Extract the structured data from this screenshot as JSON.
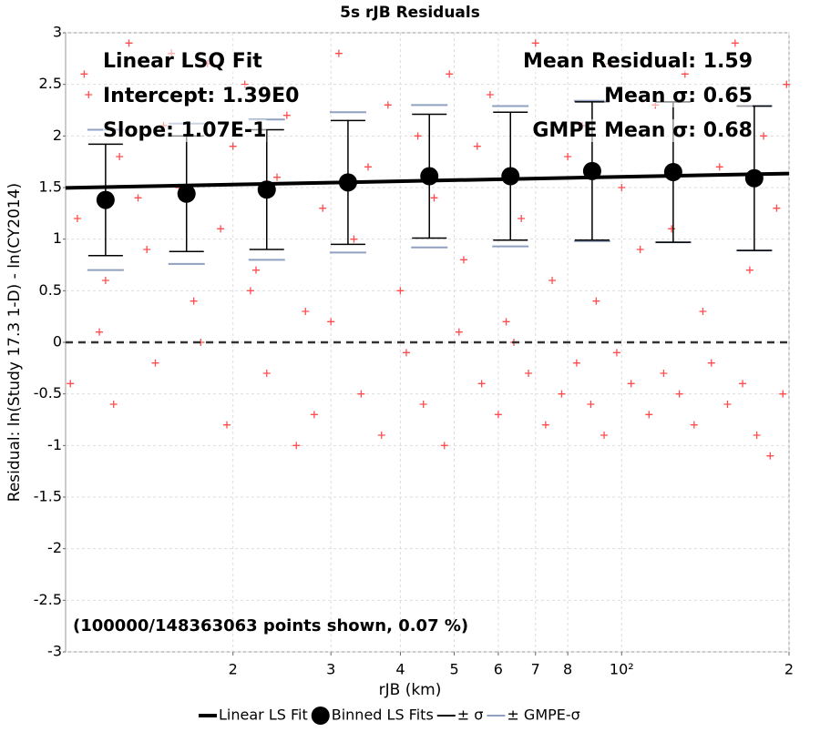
{
  "chart_data": {
    "type": "scatter",
    "title": "5s rJB Residuals",
    "xlabel": "rJB (km)",
    "ylabel": "Residual: ln(Study 17.3 1-D) - ln(CY2014)",
    "xscale": "log",
    "xlim": [
      10,
      200
    ],
    "ylim": [
      -3,
      3
    ],
    "xticks": [
      {
        "value": 20,
        "label": "2"
      },
      {
        "value": 30,
        "label": "3"
      },
      {
        "value": 40,
        "label": "4"
      },
      {
        "value": 50,
        "label": "5"
      },
      {
        "value": 60,
        "label": "6"
      },
      {
        "value": 70,
        "label": "7"
      },
      {
        "value": 80,
        "label": "8"
      },
      {
        "value": 100,
        "label": "10²"
      },
      {
        "value": 200,
        "label": "2"
      }
    ],
    "yticks": [
      -3,
      -2.5,
      -2,
      -1.5,
      -1,
      -0.5,
      0,
      0.5,
      1,
      1.5,
      2,
      2.5,
      3
    ],
    "grid": true,
    "hline": 0,
    "annotations": [
      "Linear LSQ Fit",
      "Intercept: 1.39E0",
      "Slope: 1.07E-1",
      "Mean Residual: 1.59",
      "Mean σ: 0.65",
      "GMPE Mean σ: 0.68",
      "(100000/148363063 points shown, 0.07 %)"
    ],
    "points": {
      "color": "#ff4d4d",
      "x": [
        10.5,
        11,
        11.8,
        12.5,
        13,
        14,
        15,
        16,
        17,
        18,
        19,
        20,
        21,
        22,
        24,
        25,
        27,
        29,
        31,
        33,
        35,
        38,
        40,
        43,
        46,
        49,
        52,
        55,
        58,
        62,
        66,
        70,
        75,
        80,
        85,
        90,
        95,
        100,
        108,
        115,
        123,
        130,
        140,
        150,
        160,
        170,
        180,
        190,
        198,
        10.2,
        10.8,
        11.5,
        12.2,
        13.5,
        14.5,
        15.5,
        17.5,
        19.5,
        21.5,
        23,
        26,
        28,
        30,
        34,
        37,
        41,
        44,
        48,
        51,
        56,
        60,
        64,
        68,
        73,
        78,
        83,
        88,
        93,
        98,
        104,
        112,
        119,
        127,
        135,
        145,
        155,
        165,
        175,
        185,
        195
      ],
      "y": [
        1.2,
        2.4,
        0.6,
        1.8,
        2.9,
        0.9,
        2.1,
        1.5,
        0.4,
        2.7,
        1.1,
        1.9,
        2.5,
        0.7,
        1.6,
        2.2,
        0.3,
        1.3,
        2.8,
        1.0,
        1.7,
        2.3,
        0.5,
        2.0,
        1.4,
        2.6,
        0.8,
        1.9,
        2.4,
        0.2,
        1.2,
        2.9,
        0.6,
        1.8,
        2.1,
        0.4,
        2.7,
        1.5,
        0.9,
        2.3,
        1.1,
        2.6,
        0.3,
        1.7,
        2.9,
        0.7,
        2.0,
        1.3,
        2.5,
        -0.4,
        2.6,
        0.1,
        -0.6,
        1.4,
        -0.2,
        2.8,
        0.0,
        -0.8,
        0.5,
        -0.3,
        -1.0,
        -0.7,
        0.2,
        -0.5,
        -0.9,
        -0.1,
        -0.6,
        -1.0,
        0.1,
        -0.4,
        -0.7,
        0.0,
        -0.3,
        -0.8,
        -0.5,
        -0.2,
        -0.6,
        -0.9,
        -0.1,
        -0.4,
        -0.7,
        -0.3,
        -0.5,
        -0.8,
        -0.2,
        -0.6,
        -0.4,
        -0.9,
        -1.1,
        -0.5
      ]
    },
    "series": [
      {
        "name": "Linear LS Fit",
        "color": "#000000",
        "x": [
          10,
          200
        ],
        "values": [
          1.497,
          1.636
        ]
      },
      {
        "name": "Binned LS Fits",
        "color": "#000000",
        "x": [
          11.8,
          16.5,
          23.0,
          32.2,
          45.1,
          63.1,
          88.5,
          123.8,
          173.2
        ],
        "values": [
          1.38,
          1.44,
          1.48,
          1.55,
          1.61,
          1.61,
          1.66,
          1.65,
          1.59
        ]
      },
      {
        "name": "± σ",
        "color": "#000000",
        "values": [
          0.54,
          0.56,
          0.58,
          0.6,
          0.6,
          0.62,
          0.67,
          0.68,
          0.7
        ]
      },
      {
        "name": "± GMPE-σ",
        "color": "#8fa0c0",
        "values": [
          0.68,
          0.68,
          0.68,
          0.68,
          0.69,
          0.68,
          0.68,
          0.68,
          0.7
        ]
      }
    ]
  }
}
